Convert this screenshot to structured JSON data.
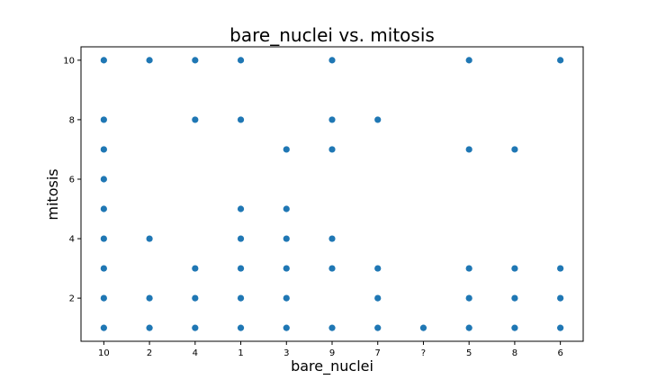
{
  "chart_data": {
    "type": "scatter",
    "title": "bare_nuclei vs. mitosis",
    "xlabel": "bare_nuclei",
    "ylabel": "mitosis",
    "x_categories": [
      "10",
      "2",
      "4",
      "1",
      "3",
      "9",
      "7",
      "?",
      "5",
      "8",
      "6"
    ],
    "y_ticks": [
      2,
      4,
      6,
      8,
      10
    ],
    "ylim": [
      0.55,
      10.45
    ],
    "grid": false,
    "marker_color": "#1f77b4",
    "points": [
      {
        "x": "10",
        "y": 10
      },
      {
        "x": "10",
        "y": 8
      },
      {
        "x": "10",
        "y": 7
      },
      {
        "x": "10",
        "y": 6
      },
      {
        "x": "10",
        "y": 5
      },
      {
        "x": "10",
        "y": 4
      },
      {
        "x": "10",
        "y": 3
      },
      {
        "x": "10",
        "y": 2
      },
      {
        "x": "10",
        "y": 1
      },
      {
        "x": "2",
        "y": 10
      },
      {
        "x": "2",
        "y": 4
      },
      {
        "x": "2",
        "y": 2
      },
      {
        "x": "2",
        "y": 1
      },
      {
        "x": "4",
        "y": 10
      },
      {
        "x": "4",
        "y": 8
      },
      {
        "x": "4",
        "y": 3
      },
      {
        "x": "4",
        "y": 2
      },
      {
        "x": "4",
        "y": 1
      },
      {
        "x": "1",
        "y": 10
      },
      {
        "x": "1",
        "y": 8
      },
      {
        "x": "1",
        "y": 5
      },
      {
        "x": "1",
        "y": 4
      },
      {
        "x": "1",
        "y": 3
      },
      {
        "x": "1",
        "y": 2
      },
      {
        "x": "1",
        "y": 1
      },
      {
        "x": "3",
        "y": 7
      },
      {
        "x": "3",
        "y": 5
      },
      {
        "x": "3",
        "y": 4
      },
      {
        "x": "3",
        "y": 3
      },
      {
        "x": "3",
        "y": 2
      },
      {
        "x": "3",
        "y": 1
      },
      {
        "x": "9",
        "y": 10
      },
      {
        "x": "9",
        "y": 8
      },
      {
        "x": "9",
        "y": 7
      },
      {
        "x": "9",
        "y": 4
      },
      {
        "x": "9",
        "y": 3
      },
      {
        "x": "9",
        "y": 1
      },
      {
        "x": "7",
        "y": 8
      },
      {
        "x": "7",
        "y": 3
      },
      {
        "x": "7",
        "y": 2
      },
      {
        "x": "7",
        "y": 1
      },
      {
        "x": "?",
        "y": 1
      },
      {
        "x": "5",
        "y": 10
      },
      {
        "x": "5",
        "y": 7
      },
      {
        "x": "5",
        "y": 3
      },
      {
        "x": "5",
        "y": 2
      },
      {
        "x": "5",
        "y": 1
      },
      {
        "x": "8",
        "y": 7
      },
      {
        "x": "8",
        "y": 3
      },
      {
        "x": "8",
        "y": 2
      },
      {
        "x": "8",
        "y": 1
      },
      {
        "x": "6",
        "y": 10
      },
      {
        "x": "6",
        "y": 3
      },
      {
        "x": "6",
        "y": 2
      },
      {
        "x": "6",
        "y": 1
      }
    ]
  }
}
